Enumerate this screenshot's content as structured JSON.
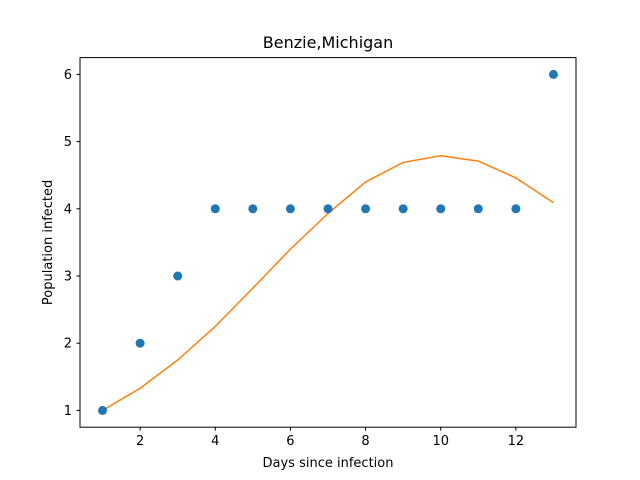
{
  "chart_data": {
    "type": "scatter",
    "title": "Benzie,Michigan",
    "xlabel": "Days since infection",
    "ylabel": "Population infected",
    "xlim": [
      0.4,
      13.6
    ],
    "ylim": [
      0.75,
      6.25
    ],
    "xticks": [
      2,
      4,
      6,
      8,
      10,
      12
    ],
    "yticks": [
      1,
      2,
      3,
      4,
      5,
      6
    ],
    "grid": false,
    "series": [
      {
        "kind": "scatter",
        "color": "#1f77b4",
        "x": [
          1,
          2,
          3,
          4,
          5,
          6,
          7,
          8,
          9,
          10,
          11,
          12,
          13
        ],
        "y": [
          1,
          2,
          3,
          4,
          4,
          4,
          4,
          4,
          4,
          4,
          4,
          4,
          6
        ]
      },
      {
        "kind": "line",
        "color": "#ff7f0e",
        "x": [
          1,
          2,
          3,
          4,
          5,
          6,
          7,
          8,
          9,
          10,
          11,
          12,
          13
        ],
        "y": [
          1.0,
          1.33,
          1.75,
          2.25,
          2.82,
          3.4,
          3.93,
          4.4,
          4.69,
          4.79,
          4.71,
          4.46,
          4.09
        ]
      }
    ]
  }
}
